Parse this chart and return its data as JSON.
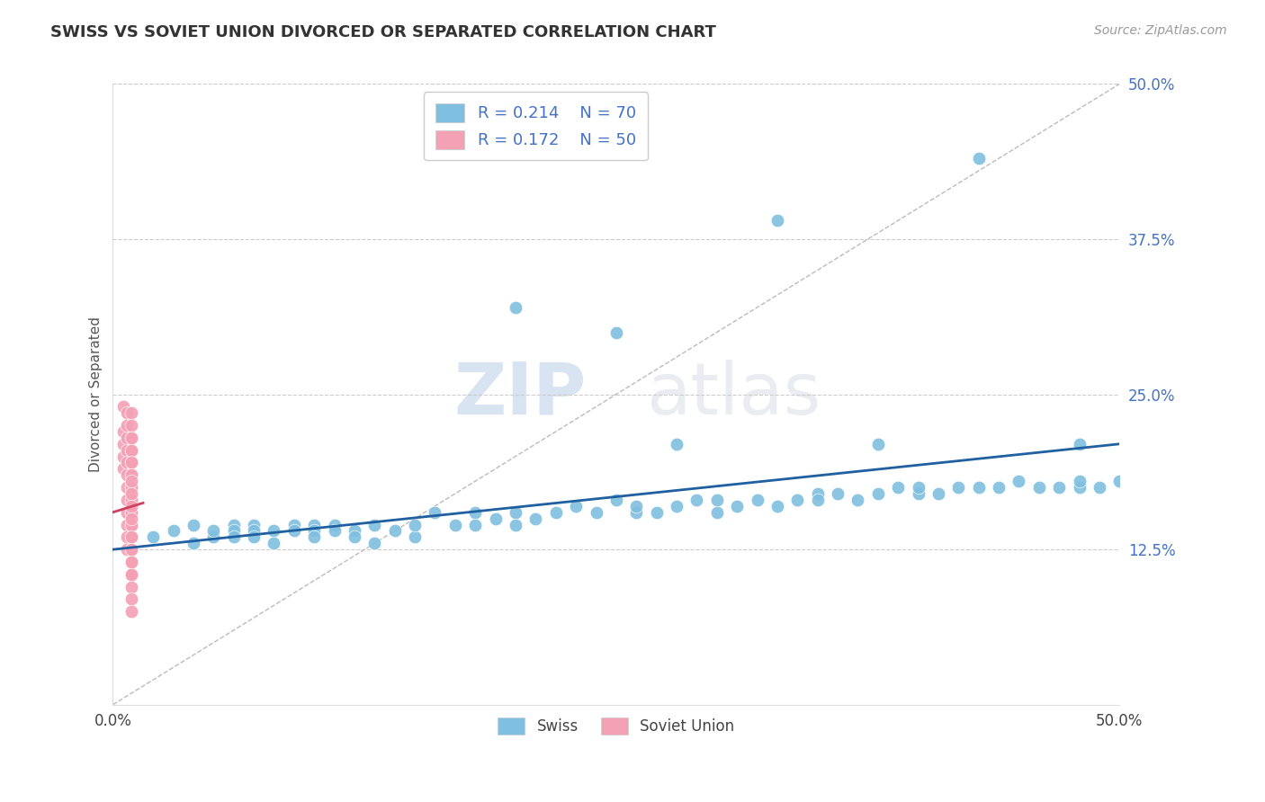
{
  "title": "SWISS VS SOVIET UNION DIVORCED OR SEPARATED CORRELATION CHART",
  "source_text": "Source: ZipAtlas.com",
  "ylabel": "Divorced or Separated",
  "xmin": 0.0,
  "xmax": 0.5,
  "ymin": 0.0,
  "ymax": 0.5,
  "xtick_labels": [
    "0.0%",
    "50.0%"
  ],
  "xtick_vals": [
    0.0,
    0.5
  ],
  "ytick_labels": [
    "12.5%",
    "25.0%",
    "37.5%",
    "50.0%"
  ],
  "ytick_vals": [
    0.125,
    0.25,
    0.375,
    0.5
  ],
  "blue_color": "#7fbfdf",
  "pink_color": "#f4a0b5",
  "blue_line_color": "#2060a0",
  "pink_line_color": "#d04060",
  "blue_R": 0.214,
  "blue_N": 70,
  "pink_R": 0.172,
  "pink_N": 50,
  "watermark_zip": "ZIP",
  "watermark_atlas": "atlas",
  "blue_scatter_x": [
    0.02,
    0.03,
    0.04,
    0.04,
    0.05,
    0.05,
    0.06,
    0.06,
    0.06,
    0.07,
    0.07,
    0.07,
    0.08,
    0.08,
    0.09,
    0.09,
    0.1,
    0.1,
    0.1,
    0.11,
    0.11,
    0.12,
    0.12,
    0.13,
    0.13,
    0.14,
    0.15,
    0.15,
    0.16,
    0.17,
    0.18,
    0.18,
    0.19,
    0.2,
    0.2,
    0.21,
    0.22,
    0.23,
    0.24,
    0.25,
    0.26,
    0.26,
    0.27,
    0.28,
    0.29,
    0.3,
    0.3,
    0.31,
    0.32,
    0.33,
    0.34,
    0.35,
    0.35,
    0.36,
    0.37,
    0.38,
    0.39,
    0.4,
    0.4,
    0.41,
    0.42,
    0.43,
    0.44,
    0.45,
    0.46,
    0.47,
    0.48,
    0.48,
    0.49,
    0.5
  ],
  "blue_scatter_y": [
    0.135,
    0.14,
    0.13,
    0.145,
    0.135,
    0.14,
    0.145,
    0.14,
    0.135,
    0.145,
    0.14,
    0.135,
    0.14,
    0.13,
    0.145,
    0.14,
    0.145,
    0.14,
    0.135,
    0.145,
    0.14,
    0.14,
    0.135,
    0.145,
    0.13,
    0.14,
    0.135,
    0.145,
    0.155,
    0.145,
    0.155,
    0.145,
    0.15,
    0.155,
    0.145,
    0.15,
    0.155,
    0.16,
    0.155,
    0.165,
    0.155,
    0.16,
    0.155,
    0.16,
    0.165,
    0.155,
    0.165,
    0.16,
    0.165,
    0.16,
    0.165,
    0.17,
    0.165,
    0.17,
    0.165,
    0.17,
    0.175,
    0.17,
    0.175,
    0.17,
    0.175,
    0.175,
    0.175,
    0.18,
    0.175,
    0.175,
    0.175,
    0.18,
    0.175,
    0.18
  ],
  "blue_outlier_x": [
    0.28,
    0.38,
    0.43,
    0.33,
    0.48,
    0.2,
    0.25
  ],
  "blue_outlier_y": [
    0.21,
    0.21,
    0.44,
    0.39,
    0.21,
    0.32,
    0.3
  ],
  "pink_scatter_x": [
    0.005,
    0.005,
    0.005,
    0.005,
    0.005,
    0.007,
    0.007,
    0.007,
    0.007,
    0.007,
    0.007,
    0.007,
    0.007,
    0.007,
    0.007,
    0.007,
    0.007,
    0.009,
    0.009,
    0.009,
    0.009,
    0.009,
    0.009,
    0.009,
    0.009,
    0.009,
    0.009,
    0.009,
    0.009,
    0.009,
    0.009,
    0.009,
    0.009,
    0.009,
    0.009,
    0.009,
    0.009,
    0.009,
    0.009,
    0.009,
    0.009,
    0.009,
    0.009,
    0.009,
    0.009,
    0.009,
    0.009,
    0.009,
    0.009,
    0.009
  ],
  "pink_scatter_y": [
    0.24,
    0.22,
    0.21,
    0.2,
    0.19,
    0.235,
    0.225,
    0.215,
    0.205,
    0.195,
    0.185,
    0.175,
    0.165,
    0.155,
    0.145,
    0.135,
    0.125,
    0.235,
    0.225,
    0.215,
    0.205,
    0.195,
    0.185,
    0.175,
    0.165,
    0.155,
    0.145,
    0.135,
    0.125,
    0.115,
    0.105,
    0.215,
    0.205,
    0.195,
    0.185,
    0.175,
    0.165,
    0.155,
    0.145,
    0.135,
    0.125,
    0.115,
    0.105,
    0.095,
    0.085,
    0.075,
    0.18,
    0.17,
    0.16,
    0.15
  ]
}
